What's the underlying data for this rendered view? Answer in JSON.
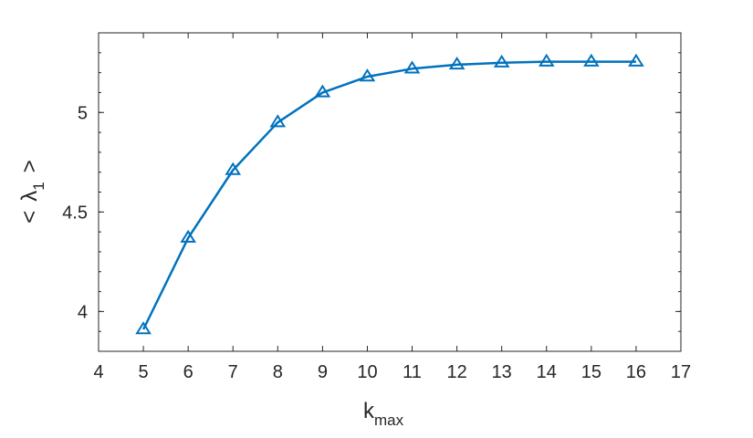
{
  "chart_data": {
    "type": "line",
    "x": [
      5,
      6,
      7,
      8,
      9,
      10,
      11,
      12,
      13,
      14,
      15,
      16
    ],
    "series": [
      {
        "values": [
          3.91,
          4.37,
          4.71,
          4.95,
          5.1,
          5.18,
          5.22,
          5.24,
          5.25,
          5.255,
          5.255,
          5.255
        ],
        "color": "#0072BD",
        "marker": "triangle"
      }
    ],
    "xlim": [
      4,
      17
    ],
    "ylim": [
      3.8,
      5.4
    ],
    "xticks": [
      "4",
      "5",
      "6",
      "7",
      "8",
      "9",
      "10",
      "11",
      "12",
      "13",
      "14",
      "15",
      "16",
      "17"
    ],
    "yticks": [
      "4",
      "4.5",
      "5"
    ],
    "xlabel": {
      "main": "k",
      "sub": "max"
    },
    "ylabel": {
      "left": "<",
      "main": "λ",
      "sub": "1",
      "right": ">"
    },
    "grid": false,
    "box": true
  }
}
